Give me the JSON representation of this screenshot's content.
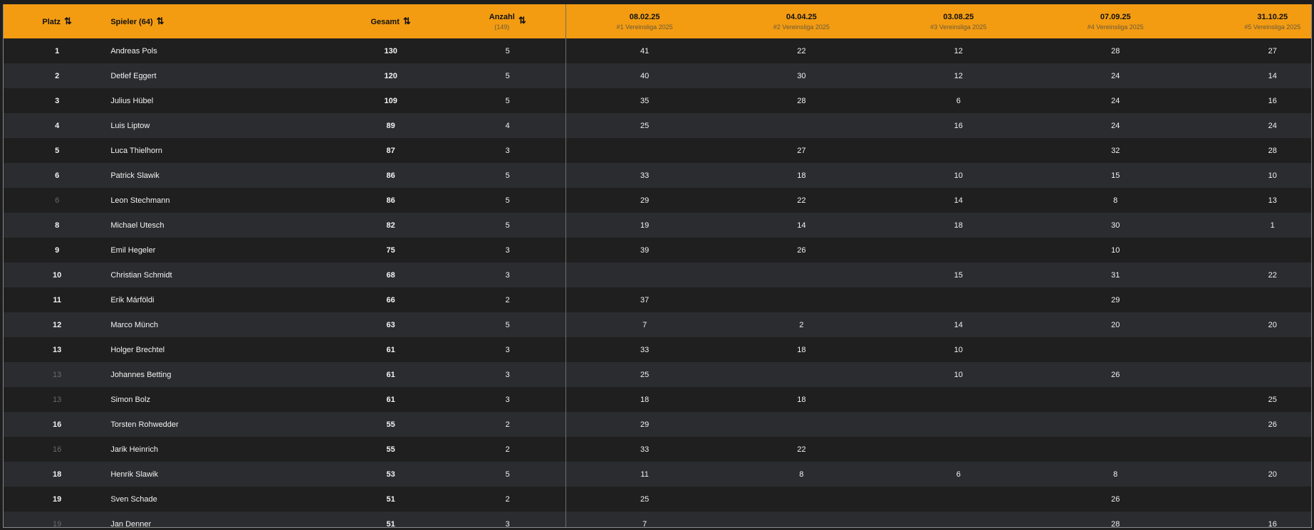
{
  "header": {
    "platz": "Platz",
    "spieler": "Spieler (64)",
    "gesamt": "Gesamt",
    "anzahl": "Anzahl",
    "anzahl_sub": "(149)",
    "sort_icon": "sort-arrows-icon",
    "events": [
      {
        "date": "08.02.25",
        "name": "#1 Vereinsliga 2025"
      },
      {
        "date": "04.04.25",
        "name": "#2 Vereinsliga 2025"
      },
      {
        "date": "03.08.25",
        "name": "#3 Vereinsliga 2025"
      },
      {
        "date": "07.09.25",
        "name": "#4 Vereinsliga 2025"
      },
      {
        "date": "31.10.25",
        "name": "#5 Vereinsliga 2025"
      }
    ]
  },
  "colors": {
    "header": "#f39c12",
    "row_odd": "#1f1f1f",
    "row_even": "#2b2c2f",
    "tie_rank": "#6a6a6a"
  },
  "rows": [
    {
      "rank": "1",
      "tie": false,
      "name": "Andreas Pols",
      "total": "130",
      "count": "5",
      "scores": [
        "41",
        "22",
        "12",
        "28",
        "27"
      ]
    },
    {
      "rank": "2",
      "tie": false,
      "name": "Detlef Eggert",
      "total": "120",
      "count": "5",
      "scores": [
        "40",
        "30",
        "12",
        "24",
        "14"
      ]
    },
    {
      "rank": "3",
      "tie": false,
      "name": "Julius Hübel",
      "total": "109",
      "count": "5",
      "scores": [
        "35",
        "28",
        "6",
        "24",
        "16"
      ]
    },
    {
      "rank": "4",
      "tie": false,
      "name": "Luis Liptow",
      "total": "89",
      "count": "4",
      "scores": [
        "25",
        "",
        "16",
        "24",
        "24"
      ]
    },
    {
      "rank": "5",
      "tie": false,
      "name": "Luca Thielhorn",
      "total": "87",
      "count": "3",
      "scores": [
        "",
        "27",
        "",
        "32",
        "28"
      ]
    },
    {
      "rank": "6",
      "tie": false,
      "name": "Patrick Slawik",
      "total": "86",
      "count": "5",
      "scores": [
        "33",
        "18",
        "10",
        "15",
        "10"
      ]
    },
    {
      "rank": "6",
      "tie": true,
      "name": "Leon Stechmann",
      "total": "86",
      "count": "5",
      "scores": [
        "29",
        "22",
        "14",
        "8",
        "13"
      ]
    },
    {
      "rank": "8",
      "tie": false,
      "name": "Michael Utesch",
      "total": "82",
      "count": "5",
      "scores": [
        "19",
        "14",
        "18",
        "30",
        "1"
      ]
    },
    {
      "rank": "9",
      "tie": false,
      "name": "Emil Hegeler",
      "total": "75",
      "count": "3",
      "scores": [
        "39",
        "26",
        "",
        "10",
        ""
      ]
    },
    {
      "rank": "10",
      "tie": false,
      "name": "Christian Schmidt",
      "total": "68",
      "count": "3",
      "scores": [
        "",
        "",
        "15",
        "31",
        "22"
      ]
    },
    {
      "rank": "11",
      "tie": false,
      "name": "Erik Márföldi",
      "total": "66",
      "count": "2",
      "scores": [
        "37",
        "",
        "",
        "29",
        ""
      ]
    },
    {
      "rank": "12",
      "tie": false,
      "name": "Marco Münch",
      "total": "63",
      "count": "5",
      "scores": [
        "7",
        "2",
        "14",
        "20",
        "20"
      ]
    },
    {
      "rank": "13",
      "tie": false,
      "name": "Holger Brechtel",
      "total": "61",
      "count": "3",
      "scores": [
        "33",
        "18",
        "10",
        "",
        ""
      ]
    },
    {
      "rank": "13",
      "tie": true,
      "name": "Johannes Betting",
      "total": "61",
      "count": "3",
      "scores": [
        "25",
        "",
        "10",
        "26",
        ""
      ]
    },
    {
      "rank": "13",
      "tie": true,
      "name": "Simon Bolz",
      "total": "61",
      "count": "3",
      "scores": [
        "18",
        "18",
        "",
        "",
        "25"
      ]
    },
    {
      "rank": "16",
      "tie": false,
      "name": "Torsten Rohwedder",
      "total": "55",
      "count": "2",
      "scores": [
        "29",
        "",
        "",
        "",
        "26"
      ]
    },
    {
      "rank": "16",
      "tie": true,
      "name": "Jarik Heinrich",
      "total": "55",
      "count": "2",
      "scores": [
        "33",
        "22",
        "",
        "",
        ""
      ]
    },
    {
      "rank": "18",
      "tie": false,
      "name": "Henrik Slawik",
      "total": "53",
      "count": "5",
      "scores": [
        "11",
        "8",
        "6",
        "8",
        "20"
      ]
    },
    {
      "rank": "19",
      "tie": false,
      "name": "Sven Schade",
      "total": "51",
      "count": "2",
      "scores": [
        "25",
        "",
        "",
        "26",
        ""
      ]
    },
    {
      "rank": "19",
      "tie": true,
      "name": "Jan Denner",
      "total": "51",
      "count": "3",
      "scores": [
        "7",
        "",
        "",
        "28",
        "16"
      ]
    }
  ]
}
